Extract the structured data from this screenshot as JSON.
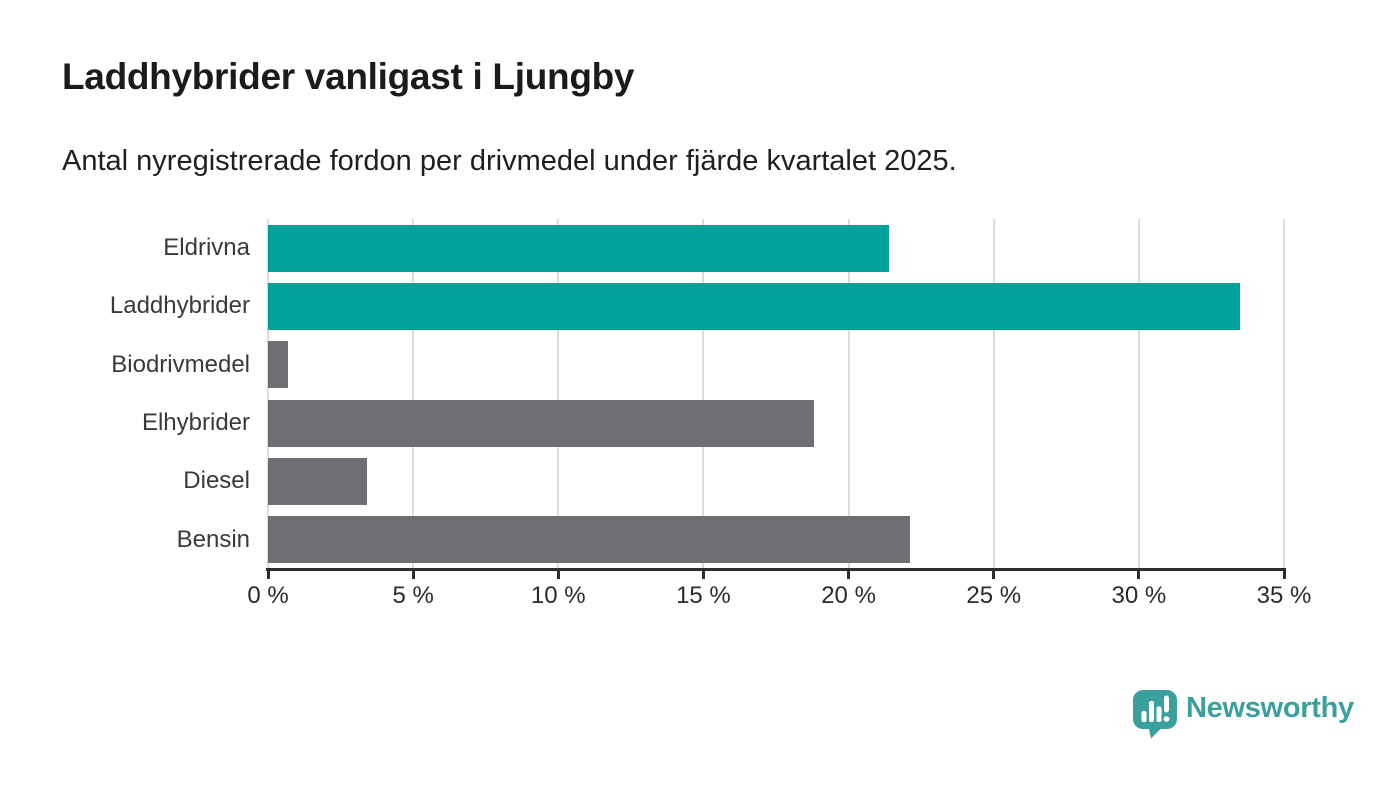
{
  "chart_data": {
    "type": "bar",
    "orientation": "horizontal",
    "title": "Laddhybrider vanligast i Ljungby",
    "subtitle": "Antal nyregistrerade fordon per drivmedel under fjärde kvartalet 2025.",
    "categories": [
      "Eldrivna",
      "Laddhybrider",
      "Biodrivmedel",
      "Elhybrider",
      "Diesel",
      "Bensin"
    ],
    "values": [
      21.4,
      33.5,
      0.7,
      18.8,
      3.4,
      22.1
    ],
    "unit": "%",
    "bar_colors": [
      "#00a19a",
      "#00a19a",
      "#6e6e73",
      "#6e6e73",
      "#6e6e73",
      "#6e6e73"
    ],
    "highlight_color": "#00a19a",
    "default_color": "#6e6e73",
    "xlim": [
      0,
      35
    ],
    "xticks": [
      0,
      5,
      10,
      15,
      20,
      25,
      30,
      35
    ],
    "xtick_labels": [
      "0 %",
      "5 %",
      "10 %",
      "15 %",
      "20 %",
      "25 %",
      "30 %",
      "35 %"
    ],
    "grid": true,
    "grid_color": "#dcdcdc",
    "axis_color": "#2d2d2d",
    "legend": false
  },
  "footer": {
    "brand": "Newsworthy",
    "brand_color": "#3aa09d",
    "logo_icon": "newsworthy-speech-bubble-bar-chart-icon"
  }
}
